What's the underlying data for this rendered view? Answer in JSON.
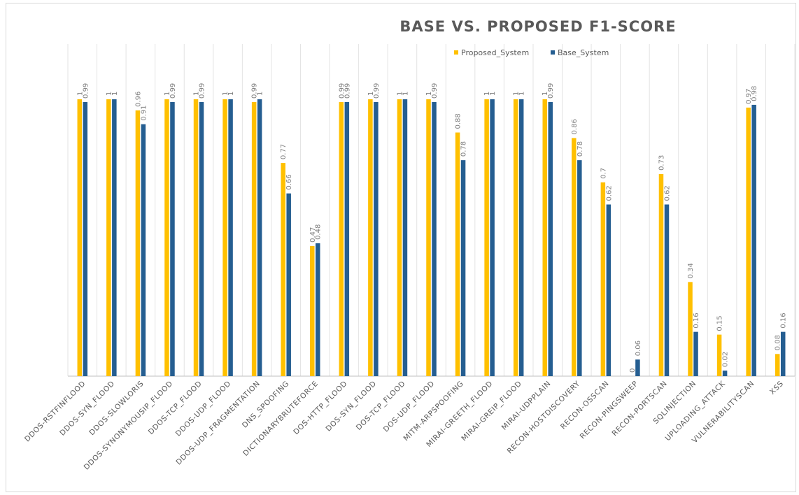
{
  "chart_data": {
    "type": "bar",
    "title": "BASE VS. PROPOSED F1-SCORE",
    "xlabel": "",
    "ylabel": "",
    "ylim": [
      0,
      1.2
    ],
    "legend_position": "top-right",
    "grid": "vertical",
    "categories": [
      "DDOS-RSTFINFLOOD",
      "DDOS-SYN_FLOOD",
      "DDOS-SLOWLORIS",
      "DDOS-SYNONYMOUSIP_FLOOD",
      "DDOS-TCP_FLOOD",
      "DDOS-UDP_FLOOD",
      "DDOS-UDP_FRAGMENTATION",
      "DNS_SPOOFING",
      "DICTIONARYBRUTEFORCE",
      "DOS-HTTP_FLOOD",
      "DOS-SYN_FLOOD",
      "DOS-TCP_FLOOD",
      "DOS-UDP_FLOOD",
      "MITM-ARPSPOOFING",
      "MIRAI-GREETH_FLOOD",
      "MIRAI-GREIP_FLOOD",
      "MIRAI-UDPPLAIN",
      "RECON-HOSTDISCOVERY",
      "RECON-OSSCAN",
      "RECON-PINGSWEEP",
      "RECON-PORTSCAN",
      "SQLINJECTION",
      "UPLOADING_ATTACK",
      "VULNERABILITYSCAN",
      "XSS"
    ],
    "series": [
      {
        "name": "Proposed_System",
        "color": "#FFC000",
        "values": [
          1,
          1,
          0.96,
          1,
          1,
          1,
          0.99,
          0.77,
          0.47,
          0.99,
          1,
          1,
          1,
          0.88,
          1,
          1,
          1,
          0.86,
          0.7,
          0,
          0.73,
          0.34,
          0.15,
          0.97,
          0.08
        ]
      },
      {
        "name": "Base_System",
        "color": "#255E91",
        "values": [
          0.99,
          1,
          0.91,
          0.99,
          0.99,
          1,
          1,
          0.66,
          0.48,
          0.99,
          0.99,
          1,
          0.99,
          0.78,
          1,
          1,
          0.99,
          0.78,
          0.62,
          0.06,
          0.62,
          0.16,
          0.02,
          0.98,
          0.16
        ]
      }
    ]
  }
}
